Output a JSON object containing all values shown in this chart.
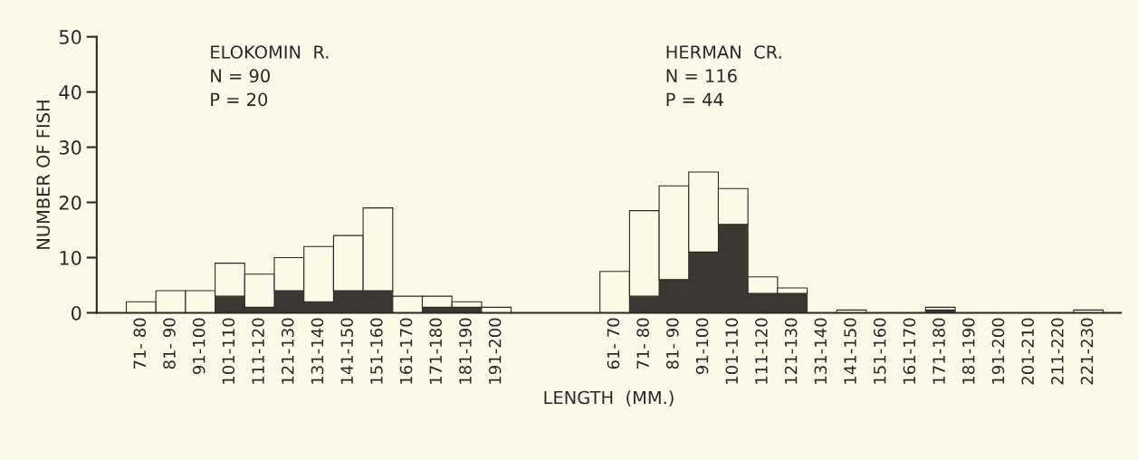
{
  "chart_data": {
    "type": "bar",
    "stacked": true,
    "ylabel": "NUMBER OF FISH",
    "xlabel": "LENGTH  (MM.)",
    "annotations": [
      "ELOKOMIN  R.\nN = 90\nP = 20",
      "HERMAN  CR.\nN = 116\nP = 44"
    ],
    "categories": [
      "71- 80",
      "81- 90",
      "91-100",
      "101-110",
      "111-120",
      "121-130",
      "131-140",
      "141-150",
      "151-160",
      "161-170",
      "171-180",
      "181-190",
      "191-200",
      null,
      null,
      null,
      "61- 70",
      "71- 80",
      "81- 90",
      "91-100",
      "101-110",
      "111-120",
      "121-130",
      "131-140",
      "141-150",
      "151-160",
      "161-170",
      "171-180",
      "181-190",
      "191-200",
      "201-210",
      "211-220",
      "221-230"
    ],
    "series": [
      {
        "color": "#3b3832",
        "values": [
          0,
          0,
          0,
          3,
          1,
          4,
          2,
          4,
          4,
          0,
          1,
          1,
          0,
          null,
          null,
          null,
          0,
          3,
          6,
          11,
          16,
          3.5,
          3.5,
          0,
          0,
          0,
          0,
          0.5,
          0,
          0,
          0,
          0,
          0
        ]
      },
      {
        "color": "#fbfbe8",
        "values": [
          2,
          4,
          4,
          6,
          6,
          6,
          10,
          10,
          15,
          3,
          2,
          1,
          1,
          null,
          null,
          null,
          7.5,
          15.5,
          17,
          14.5,
          6.5,
          3,
          1,
          0,
          0.5,
          0,
          0,
          0.5,
          0,
          0,
          0,
          0,
          0.5
        ]
      }
    ],
    "ylim": [
      0,
      50
    ],
    "yticks": [
      0,
      10,
      20,
      30,
      40,
      50
    ],
    "grid": false,
    "legend": false
  }
}
